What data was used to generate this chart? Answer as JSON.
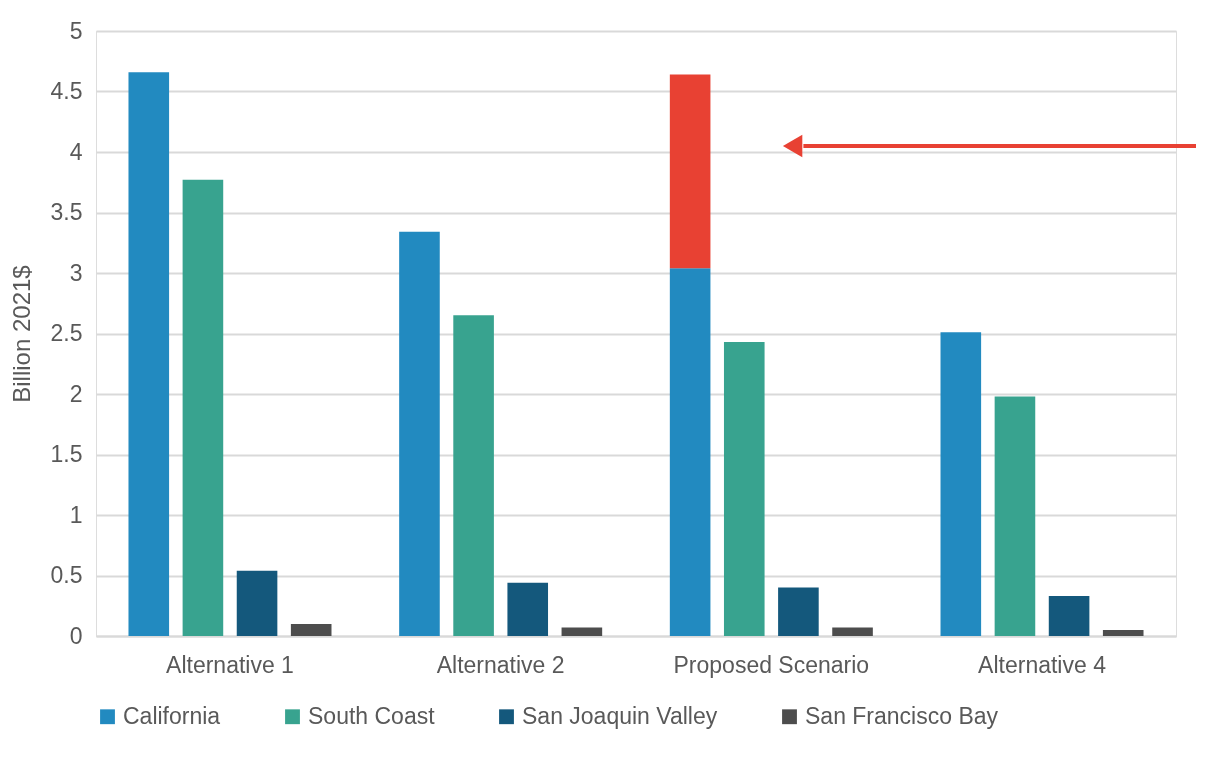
{
  "chart_data": {
    "type": "bar",
    "ylabel": "Billion 2021$",
    "categories": [
      "Alternative 1",
      "Alternative 2",
      "Proposed Scenario",
      "Alternative 4"
    ],
    "series": [
      {
        "name": "California",
        "color": "#228ac0",
        "values": [
          4.66,
          3.34,
          3.04,
          2.51
        ]
      },
      {
        "name": "South Coast",
        "color": "#38a38f",
        "values": [
          3.77,
          2.65,
          2.43,
          1.98
        ]
      },
      {
        "name": "San Joaquin Valley",
        "color": "#14587c",
        "values": [
          0.54,
          0.44,
          0.4,
          0.33
        ]
      },
      {
        "name": "San Francisco Bay",
        "color": "#4d4d4d",
        "values": [
          0.1,
          0.07,
          0.07,
          0.05
        ]
      },
      {
        "color": "#e84133",
        "base": [
          null,
          null,
          3.04,
          null
        ],
        "values": [
          null,
          null,
          1.6,
          null
        ]
      }
    ],
    "ylim": [
      0,
      5
    ],
    "yticks": [
      0,
      0.5,
      1,
      1.5,
      2,
      2.5,
      3,
      3.5,
      4,
      4.5,
      5
    ],
    "grid": "y",
    "legend": "bottom"
  }
}
